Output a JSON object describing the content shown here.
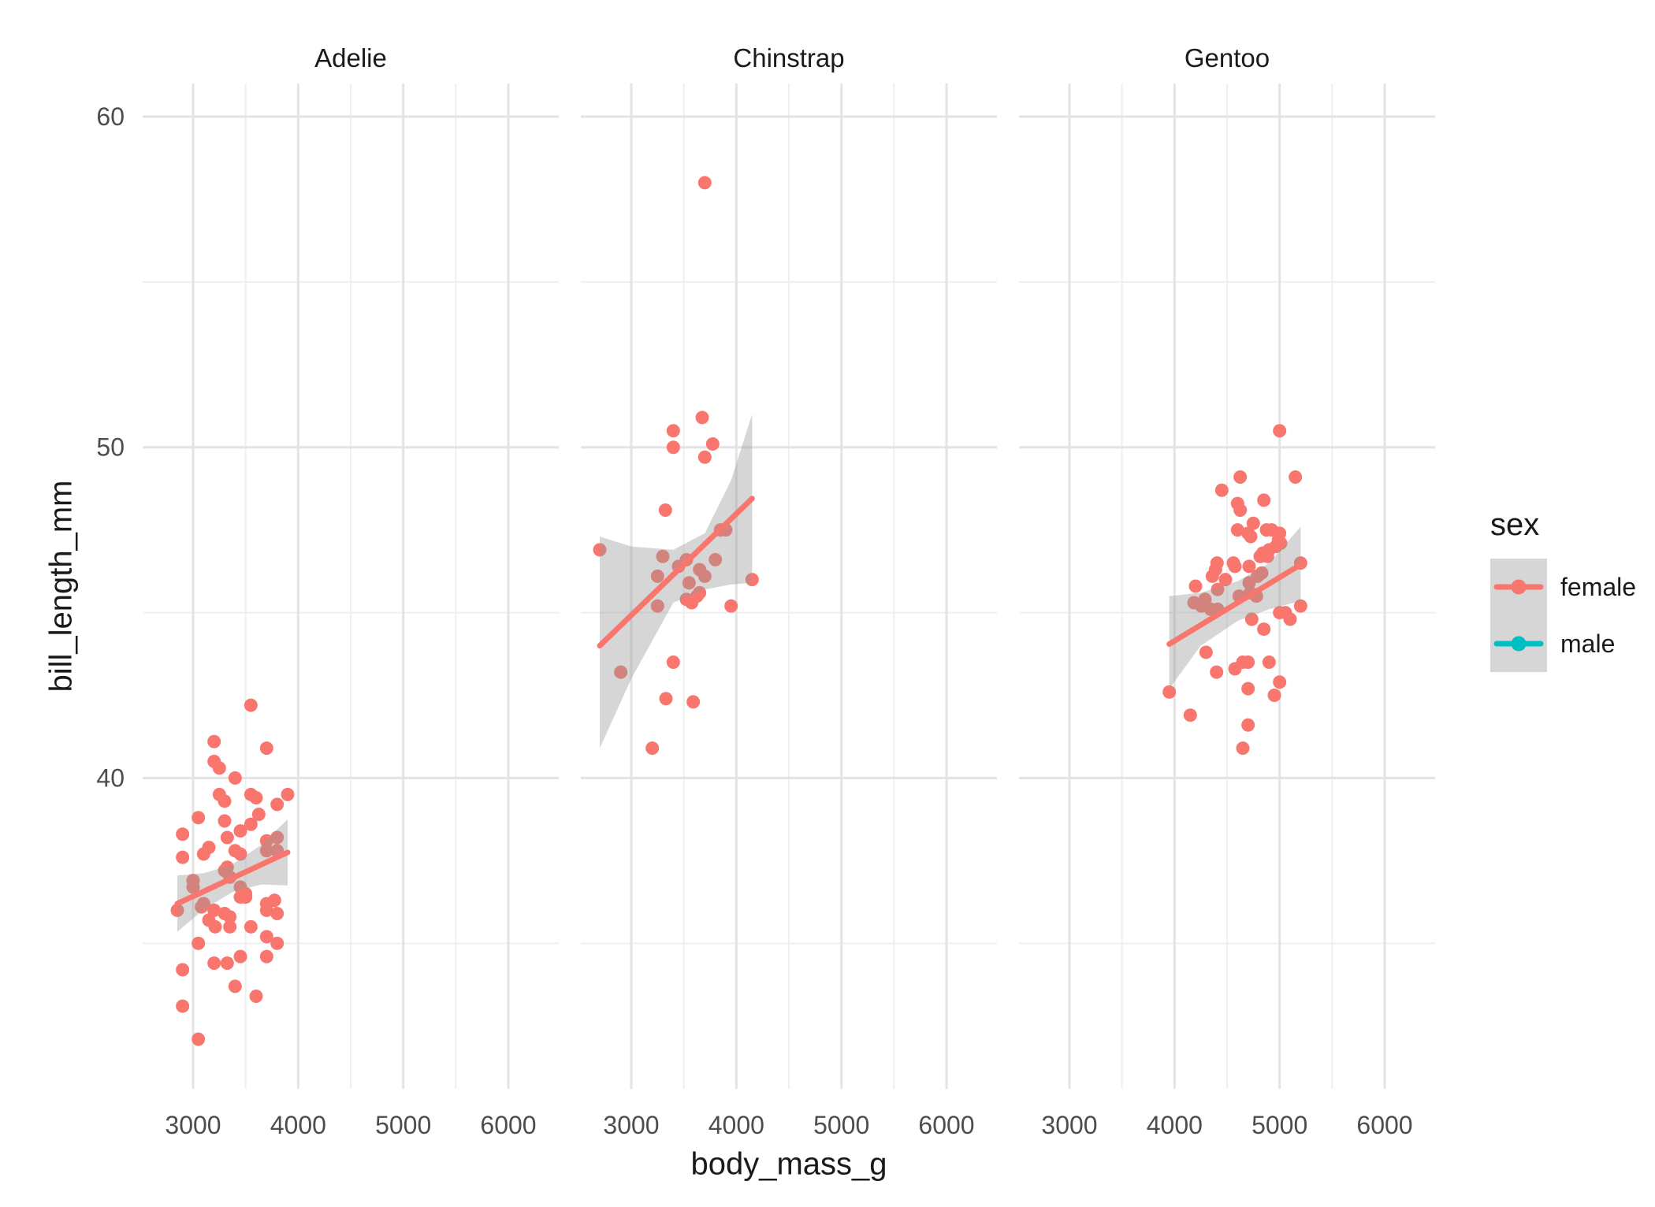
{
  "chart_data": {
    "type": "scatter",
    "title": "",
    "xlabel": "body_mass_g",
    "ylabel": "bill_length_mm",
    "x_ticks": [
      3000,
      4000,
      5000,
      6000
    ],
    "x_minor_ticks": [
      2500,
      3500,
      4500,
      5500,
      6500
    ],
    "y_ticks": [
      40,
      50,
      60
    ],
    "y_minor_ticks": [
      35,
      45,
      55
    ],
    "x_domain": [
      2520,
      6480
    ],
    "y_domain": [
      30.6,
      61.0
    ],
    "grid": true,
    "background": "#ffffff",
    "gridline_major_color": "#e3e3e3",
    "gridline_minor_color": "#efefef",
    "ribbon_color": "rgba(153,153,153,0.4)",
    "legend": {
      "title": "sex",
      "position": "right",
      "entries": [
        {
          "label": "female",
          "color": "#F8766D"
        },
        {
          "label": "male",
          "color": "#00BFC4"
        }
      ]
    },
    "facets": [
      {
        "label": "Adelie",
        "series": "female",
        "points": [
          [
            3550,
            42.2
          ],
          [
            3200,
            41.1
          ],
          [
            3700,
            40.9
          ],
          [
            3200,
            40.5
          ],
          [
            3250,
            40.3
          ],
          [
            3400,
            40.0
          ],
          [
            3250,
            39.5
          ],
          [
            3300,
            39.3
          ],
          [
            3550,
            39.5
          ],
          [
            3600,
            39.4
          ],
          [
            3800,
            39.2
          ],
          [
            3900,
            39.5
          ],
          [
            3050,
            38.8
          ],
          [
            2900,
            38.3
          ],
          [
            3300,
            38.7
          ],
          [
            3325,
            38.2
          ],
          [
            3450,
            38.4
          ],
          [
            3550,
            38.6
          ],
          [
            3625,
            38.9
          ],
          [
            3700,
            38.1
          ],
          [
            3800,
            38.2
          ],
          [
            2900,
            37.6
          ],
          [
            3100,
            37.7
          ],
          [
            3150,
            37.9
          ],
          [
            3400,
            37.8
          ],
          [
            3450,
            37.7
          ],
          [
            3700,
            37.8
          ],
          [
            3800,
            37.8
          ],
          [
            3000,
            36.9
          ],
          [
            3000,
            36.7
          ],
          [
            3300,
            37.2
          ],
          [
            3325,
            37.3
          ],
          [
            3350,
            37.0
          ],
          [
            3450,
            36.7
          ],
          [
            3500,
            36.5
          ],
          [
            2850,
            36.0
          ],
          [
            3080,
            36.1
          ],
          [
            3100,
            36.2
          ],
          [
            3200,
            36.0
          ],
          [
            3300,
            35.9
          ],
          [
            3350,
            35.8
          ],
          [
            3450,
            36.4
          ],
          [
            3500,
            36.4
          ],
          [
            3700,
            36.2
          ],
          [
            3775,
            36.3
          ],
          [
            3700,
            36.0
          ],
          [
            3800,
            35.9
          ],
          [
            3150,
            35.7
          ],
          [
            3210,
            35.5
          ],
          [
            3350,
            35.5
          ],
          [
            3550,
            35.5
          ],
          [
            3700,
            35.2
          ],
          [
            3800,
            35.0
          ],
          [
            3050,
            35.0
          ],
          [
            3450,
            34.6
          ],
          [
            3700,
            34.6
          ],
          [
            2900,
            34.2
          ],
          [
            3200,
            34.4
          ],
          [
            3325,
            34.4
          ],
          [
            3400,
            33.7
          ],
          [
            3600,
            33.4
          ],
          [
            2900,
            33.1
          ],
          [
            3050,
            32.1
          ]
        ],
        "smooth_line": [
          [
            2850,
            36.2
          ],
          [
            3900,
            37.75
          ]
        ],
        "ribbon": [
          [
            2850,
            37.05,
            35.35
          ],
          [
            3100,
            37.12,
            36.02
          ],
          [
            3375,
            37.39,
            36.55
          ],
          [
            3650,
            37.98,
            36.78
          ],
          [
            3900,
            38.75,
            36.75
          ]
        ]
      },
      {
        "label": "Chinstrap",
        "series": "female",
        "points": [
          [
            3700,
            58.0
          ],
          [
            3675,
            50.9
          ],
          [
            3400,
            50.5
          ],
          [
            3775,
            50.1
          ],
          [
            3400,
            50.0
          ],
          [
            3700,
            49.7
          ],
          [
            3325,
            48.1
          ],
          [
            3850,
            47.5
          ],
          [
            3900,
            47.5
          ],
          [
            2700,
            46.9
          ],
          [
            3300,
            46.7
          ],
          [
            3525,
            46.6
          ],
          [
            3800,
            46.6
          ],
          [
            3450,
            46.4
          ],
          [
            3650,
            46.3
          ],
          [
            3700,
            46.1
          ],
          [
            3250,
            46.1
          ],
          [
            4150,
            46.0
          ],
          [
            3550,
            45.9
          ],
          [
            3625,
            45.5
          ],
          [
            3650,
            45.6
          ],
          [
            3525,
            45.4
          ],
          [
            3575,
            45.3
          ],
          [
            3250,
            45.2
          ],
          [
            3950,
            45.2
          ],
          [
            3400,
            43.5
          ],
          [
            2900,
            43.2
          ],
          [
            3330,
            42.4
          ],
          [
            3590,
            42.3
          ],
          [
            3200,
            40.9
          ]
        ],
        "smooth_line": [
          [
            2700,
            44.0
          ],
          [
            4150,
            48.45
          ]
        ],
        "ribbon": [
          [
            2700,
            47.3,
            40.9
          ],
          [
            3000,
            47.0,
            43.0
          ],
          [
            3400,
            46.9,
            45.3
          ],
          [
            3700,
            47.4,
            45.7
          ],
          [
            3950,
            49.0,
            45.85
          ],
          [
            4150,
            51.0,
            45.9
          ]
        ]
      },
      {
        "label": "Gentoo",
        "series": "female",
        "points": [
          [
            5000,
            50.5
          ],
          [
            4625,
            49.1
          ],
          [
            5150,
            49.1
          ],
          [
            4450,
            48.7
          ],
          [
            4850,
            48.4
          ],
          [
            4600,
            48.3
          ],
          [
            4625,
            48.1
          ],
          [
            4750,
            47.7
          ],
          [
            4600,
            47.5
          ],
          [
            4700,
            47.4
          ],
          [
            4725,
            47.3
          ],
          [
            4875,
            47.5
          ],
          [
            4925,
            47.5
          ],
          [
            5000,
            47.4
          ],
          [
            4990,
            47.2
          ],
          [
            5010,
            47.1
          ],
          [
            4965,
            47.0
          ],
          [
            4900,
            46.9
          ],
          [
            4840,
            46.8
          ],
          [
            4815,
            46.7
          ],
          [
            4885,
            46.7
          ],
          [
            4405,
            46.5
          ],
          [
            4560,
            46.5
          ],
          [
            4575,
            46.4
          ],
          [
            4390,
            46.3
          ],
          [
            4710,
            46.4
          ],
          [
            5200,
            46.5
          ],
          [
            4360,
            46.1
          ],
          [
            4485,
            46.0
          ],
          [
            4790,
            46.1
          ],
          [
            4830,
            46.2
          ],
          [
            4200,
            45.8
          ],
          [
            4410,
            45.7
          ],
          [
            4185,
            45.3
          ],
          [
            4255,
            45.2
          ],
          [
            4290,
            45.4
          ],
          [
            4345,
            45.1
          ],
          [
            4410,
            45.1
          ],
          [
            4615,
            45.5
          ],
          [
            4710,
            45.9
          ],
          [
            4720,
            45.6
          ],
          [
            4780,
            45.5
          ],
          [
            5000,
            45.0
          ],
          [
            5055,
            45.0
          ],
          [
            5100,
            44.8
          ],
          [
            5200,
            45.2
          ],
          [
            4735,
            44.8
          ],
          [
            4850,
            44.5
          ],
          [
            4300,
            43.8
          ],
          [
            4400,
            43.2
          ],
          [
            4575,
            43.3
          ],
          [
            4650,
            43.5
          ],
          [
            4700,
            43.5
          ],
          [
            4900,
            43.5
          ],
          [
            4700,
            42.7
          ],
          [
            5000,
            42.9
          ],
          [
            4950,
            42.5
          ],
          [
            3950,
            42.6
          ],
          [
            4150,
            41.9
          ],
          [
            4700,
            41.6
          ],
          [
            4650,
            40.9
          ]
        ],
        "smooth_line": [
          [
            3950,
            44.05
          ],
          [
            5200,
            46.45
          ]
        ],
        "ribbon": [
          [
            3950,
            45.5,
            42.7
          ],
          [
            4250,
            45.6,
            44.0
          ],
          [
            4600,
            45.95,
            44.75
          ],
          [
            4900,
            46.5,
            45.1
          ],
          [
            5200,
            47.6,
            45.35
          ]
        ]
      }
    ]
  }
}
